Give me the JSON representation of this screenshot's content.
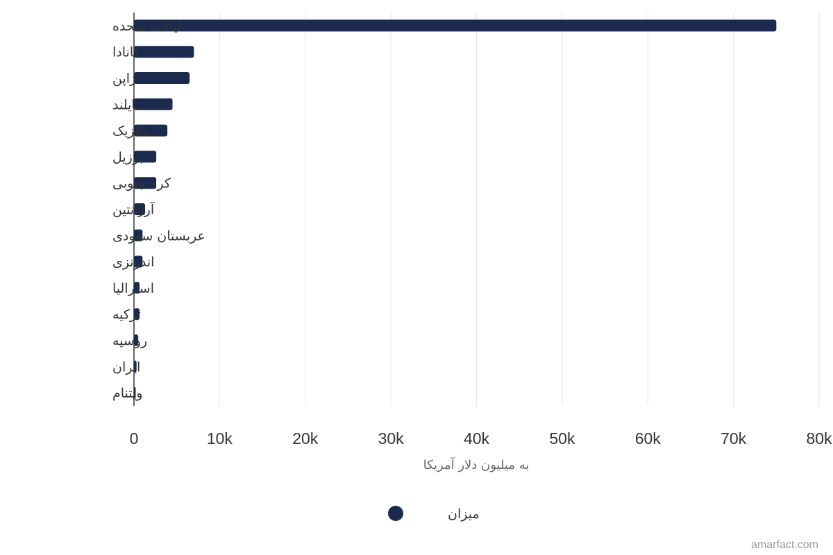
{
  "chart_data": {
    "type": "bar",
    "orientation": "horizontal",
    "categories": [
      "ایالات متحده",
      "کانادا",
      "ژاپن",
      "تایلند",
      "مکزیک",
      "برزیل",
      "کره جنوبی",
      "آرژانتین",
      "عربستان سعودی",
      "اندونزی",
      "استرالیا",
      "ترکیه",
      "روسیه",
      "ایران",
      "ویتنام"
    ],
    "series": [
      {
        "name": "میزان",
        "color": "#1b2a4e",
        "values": [
          75000,
          7000,
          6500,
          4500,
          3900,
          2600,
          2600,
          1300,
          1000,
          1000,
          650,
          650,
          500,
          300,
          200
        ]
      }
    ],
    "xlabel": "به میلیون دلار آمریکا",
    "xlim": [
      0,
      80000
    ],
    "x_ticks": [
      0,
      10000,
      20000,
      30000,
      40000,
      50000,
      60000,
      70000,
      80000
    ],
    "x_tick_labels": [
      "0",
      "10k",
      "20k",
      "30k",
      "40k",
      "50k",
      "60k",
      "70k",
      "80k"
    ],
    "grid": "vertical",
    "legend_position": "bottom-center"
  },
  "credit": "amarfact.com",
  "colors": {
    "bar": "#1b2a4e",
    "grid": "#e6e6e6",
    "axis": "#333333"
  }
}
